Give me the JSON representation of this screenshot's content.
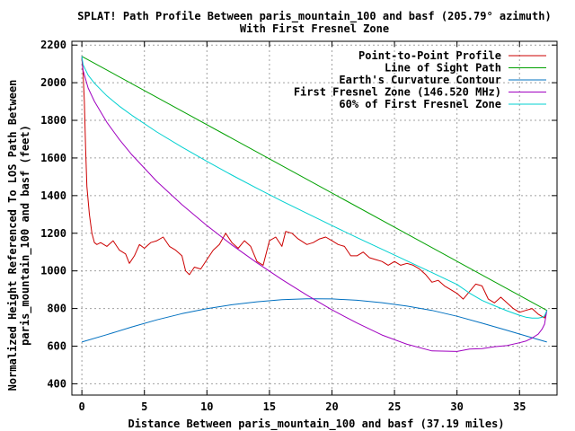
{
  "chart_data": {
    "type": "line",
    "title_line1": "SPLAT! Path Profile Between paris_mountain_100 and basf (205.79° azimuth)",
    "title_line2": "With First Fresnel Zone",
    "xlabel": "Distance Between paris_mountain_100 and basf (37.19 miles)",
    "ylabel_line1": "Normalized Height Referenced To LOS Path Between",
    "ylabel_line2": "paris_mountain_100 and basf (feet)",
    "xlim": [
      -0.8,
      38
    ],
    "ylim": [
      340,
      2220
    ],
    "xticks": [
      0,
      5,
      10,
      15,
      20,
      25,
      30,
      35
    ],
    "yticks": [
      400,
      600,
      800,
      1000,
      1200,
      1400,
      1600,
      1800,
      2000,
      2200
    ],
    "grid": true,
    "legend_position": "top-right",
    "series": [
      {
        "name": "Point-to-Point Profile",
        "color": "#cc0000",
        "x": [
          0,
          0.1,
          0.2,
          0.3,
          0.4,
          0.6,
          0.8,
          1.0,
          1.2,
          1.5,
          2.0,
          2.5,
          3.0,
          3.5,
          3.8,
          4.2,
          4.6,
          5.0,
          5.5,
          6.0,
          6.5,
          7.0,
          7.5,
          8.0,
          8.3,
          8.6,
          9.0,
          9.5,
          10.0,
          10.5,
          11.0,
          11.5,
          12.0,
          12.5,
          13.0,
          13.5,
          14.0,
          14.5,
          15.0,
          15.5,
          16.0,
          16.3,
          16.8,
          17.3,
          18.0,
          18.5,
          19.0,
          19.5,
          20.0,
          20.5,
          21.0,
          21.5,
          22.0,
          22.5,
          23.0,
          23.5,
          24.0,
          24.5,
          25.0,
          25.5,
          26.0,
          26.5,
          27.0,
          27.5,
          28.0,
          28.5,
          29.0,
          29.5,
          30.0,
          30.5,
          31.0,
          31.5,
          32.0,
          32.5,
          33.0,
          33.5,
          34.0,
          34.5,
          35.0,
          35.5,
          36.0,
          36.5,
          37.0,
          37.19
        ],
        "y": [
          2130,
          2050,
          1900,
          1650,
          1450,
          1300,
          1200,
          1150,
          1140,
          1150,
          1130,
          1160,
          1110,
          1090,
          1040,
          1080,
          1140,
          1120,
          1150,
          1160,
          1180,
          1130,
          1110,
          1080,
          1000,
          980,
          1020,
          1010,
          1060,
          1110,
          1140,
          1200,
          1150,
          1120,
          1160,
          1130,
          1050,
          1030,
          1160,
          1180,
          1130,
          1210,
          1200,
          1170,
          1140,
          1150,
          1170,
          1180,
          1160,
          1140,
          1130,
          1080,
          1080,
          1100,
          1070,
          1060,
          1050,
          1030,
          1050,
          1030,
          1040,
          1030,
          1010,
          980,
          940,
          950,
          920,
          900,
          880,
          850,
          890,
          930,
          920,
          850,
          830,
          860,
          830,
          800,
          780,
          790,
          800,
          770,
          750,
          790
        ]
      },
      {
        "name": "Line of Sight Path",
        "color": "#00a000",
        "x": [
          0,
          37.19
        ],
        "y": [
          2140,
          790
        ]
      },
      {
        "name": "Earth's Curvature Contour",
        "color": "#0070c0",
        "x": [
          0,
          2,
          4,
          6,
          8,
          10,
          12,
          14,
          16,
          18,
          18.6,
          20,
          22,
          24,
          26,
          28,
          30,
          32,
          34,
          36,
          37.19
        ],
        "y": [
          622,
          661,
          702,
          740,
          773,
          799,
          820,
          836,
          847,
          852,
          852,
          851,
          844,
          831,
          813,
          790,
          759,
          722,
          684,
          645,
          622
        ]
      },
      {
        "name": "First Fresnel Zone (146.520 MHz)",
        "color": "#a000c0",
        "x": [
          0,
          0.1,
          0.5,
          1.0,
          2.0,
          3.0,
          4.0,
          6.0,
          8.0,
          10.0,
          12.0,
          14.0,
          16.0,
          18.0,
          20.0,
          22.0,
          24.0,
          26.0,
          28.0,
          30.0,
          31.0,
          32.0,
          33.0,
          34.0,
          35.0,
          35.5,
          36.0,
          36.5,
          36.8,
          37.0,
          37.19
        ],
        "y": [
          2140,
          2065,
          1972,
          1901,
          1789,
          1698,
          1617,
          1475,
          1352,
          1241,
          1138,
          1043,
          954,
          871,
          793,
          723,
          659,
          610,
          575,
          572,
          585,
          587,
          597,
          603,
          618,
          627,
          643,
          664,
          690,
          717,
          790
        ]
      },
      {
        "name": "60% of First Fresnel Zone",
        "color": "#00d0d0",
        "x": [
          0,
          0.1,
          0.5,
          1.0,
          2.0,
          3.0,
          4.0,
          6.0,
          8.0,
          10.0,
          12.0,
          14.0,
          16.0,
          18.0,
          20.0,
          22.0,
          24.0,
          26.0,
          28.0,
          30.0,
          31.0,
          32.0,
          33.0,
          34.0,
          35.0,
          35.5,
          36.0,
          36.5,
          36.8,
          37.0,
          37.19
        ],
        "y": [
          2140,
          2095,
          2040,
          1997,
          1930,
          1875,
          1827,
          1738,
          1658,
          1582,
          1509,
          1439,
          1371,
          1306,
          1241,
          1177,
          1115,
          1053,
          991,
          928,
          882,
          843,
          815,
          788,
          764,
          754,
          749,
          749,
          753,
          761,
          790
        ]
      }
    ]
  }
}
